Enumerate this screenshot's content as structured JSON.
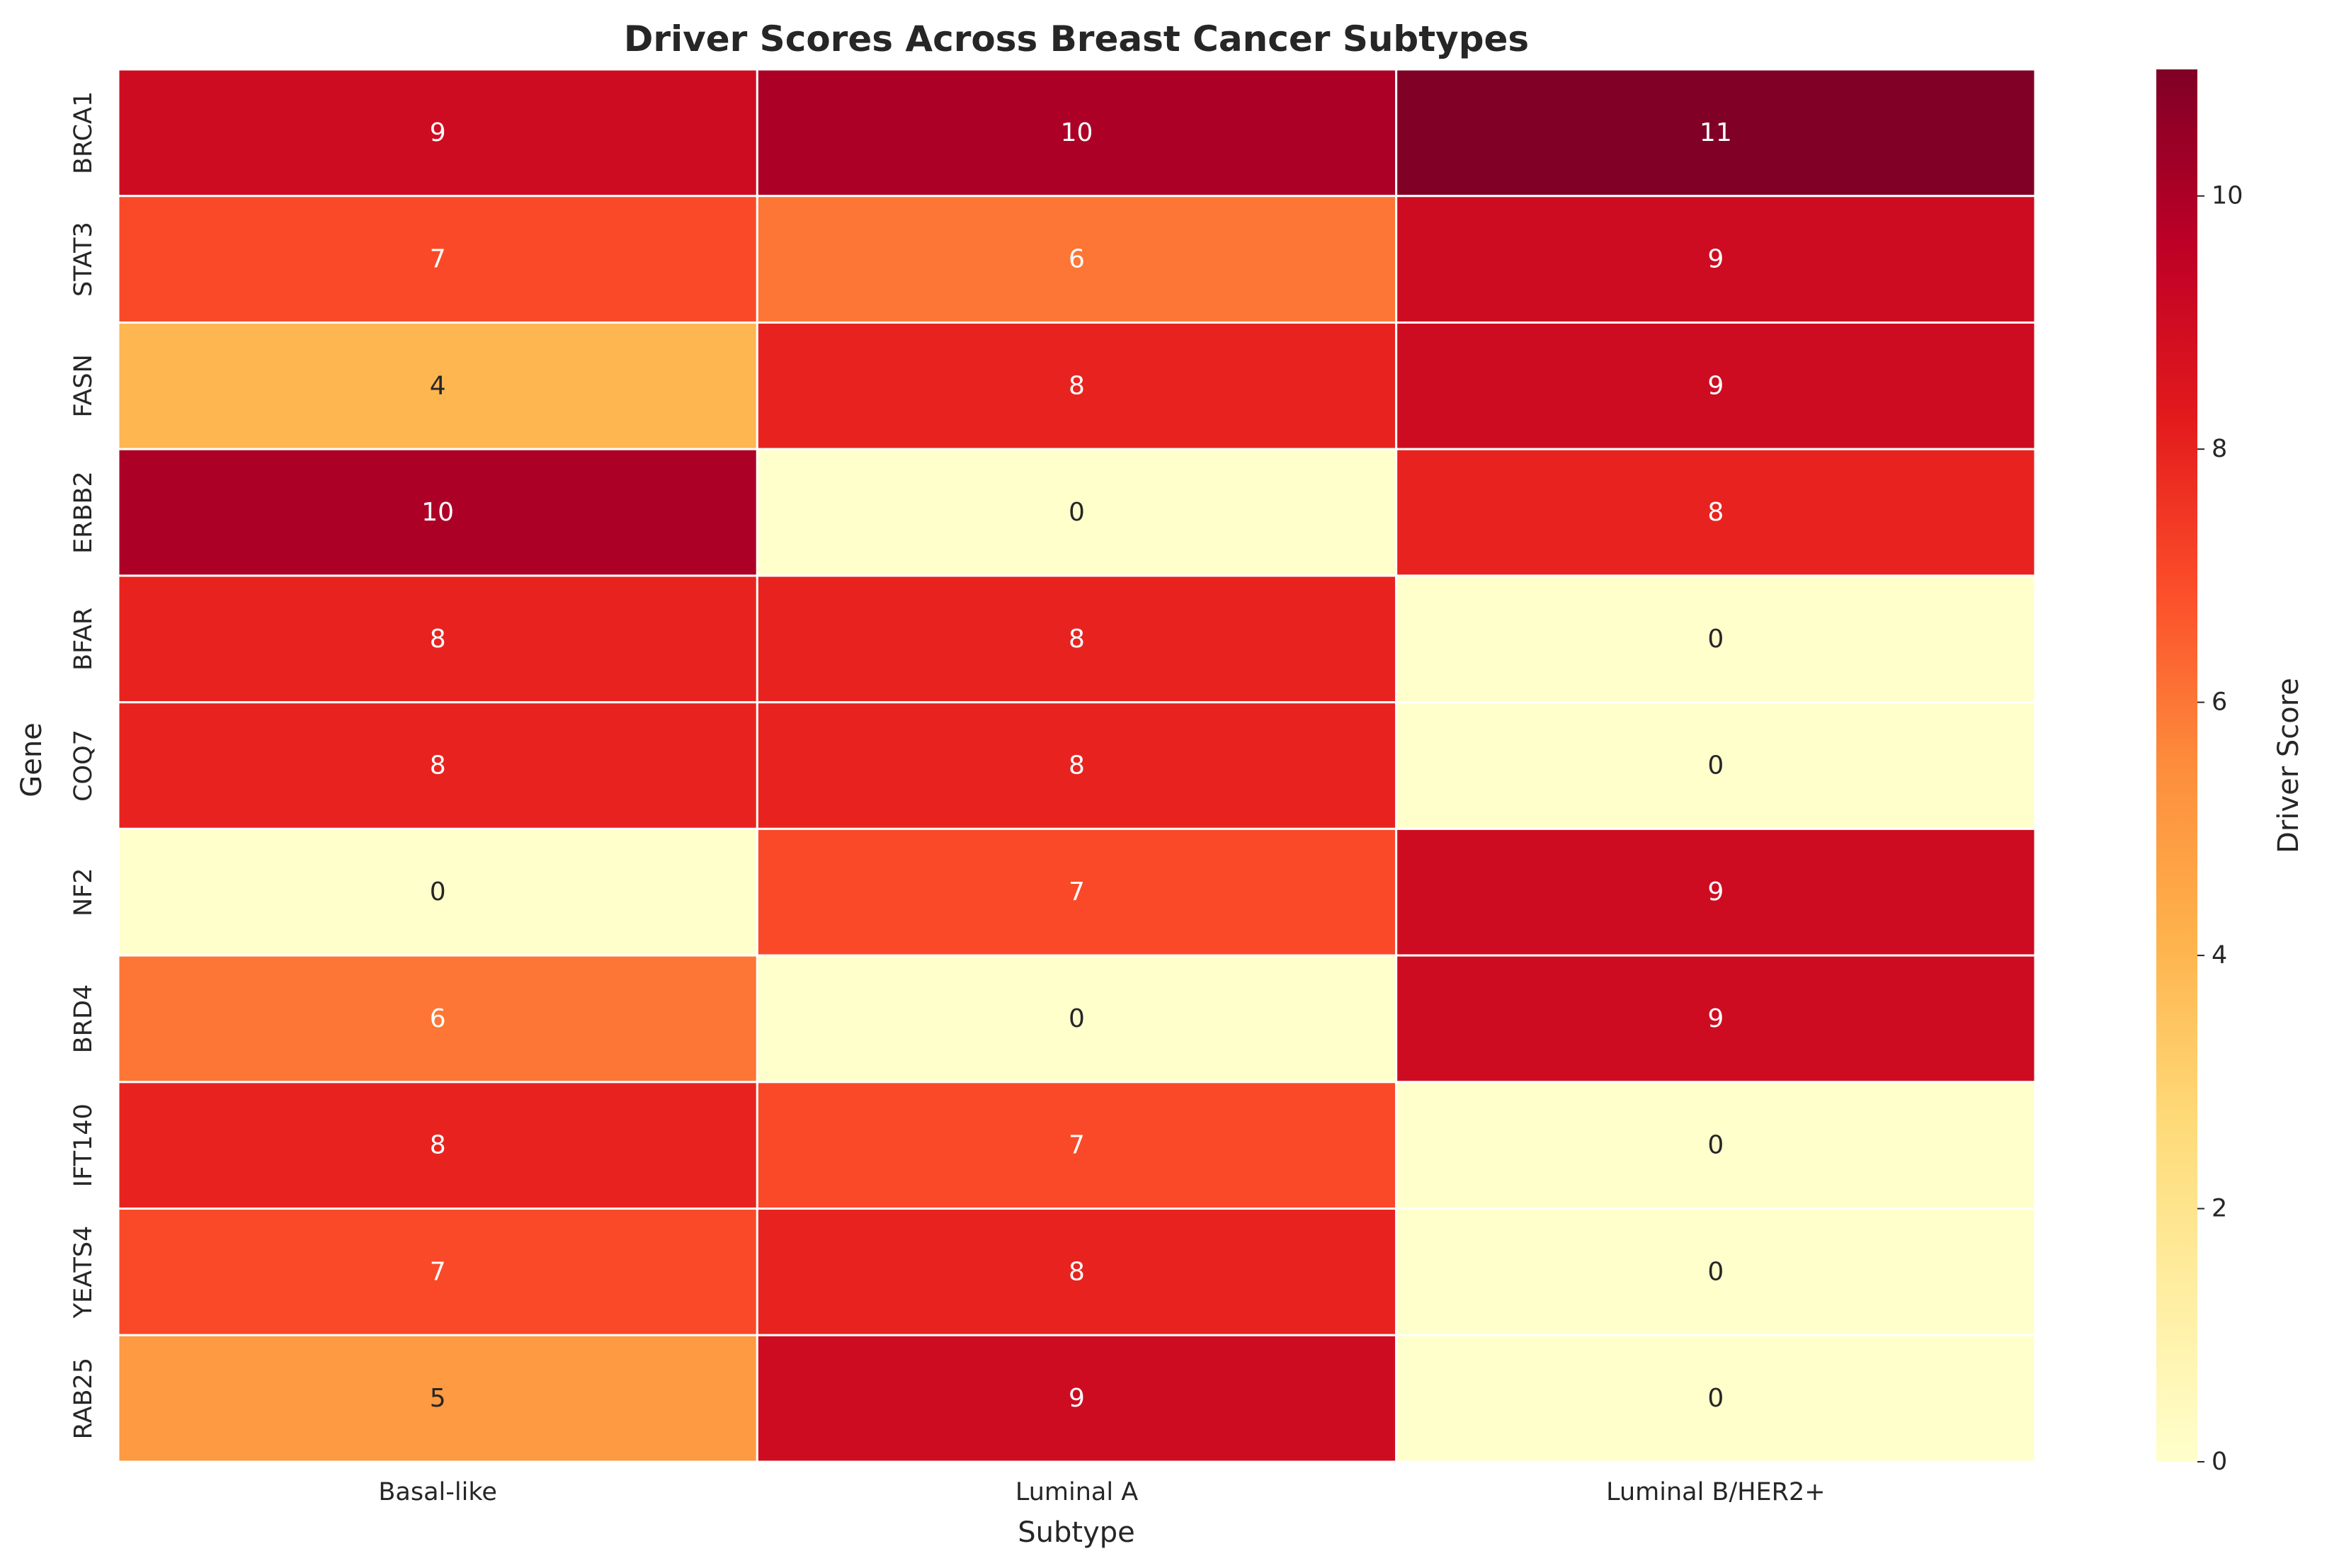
{
  "chart_data": {
    "type": "heatmap",
    "title": "Driver Scores Across Breast Cancer Subtypes",
    "xlabel": "Subtype",
    "ylabel": "Gene",
    "x_categories": [
      "Basal-like",
      "Luminal A",
      "Luminal B/HER2+"
    ],
    "y_categories": [
      "BRCA1",
      "STAT3",
      "FASN",
      "ERBB2",
      "BFAR",
      "COQ7",
      "NF2",
      "BRD4",
      "IFT140",
      "YEATS4",
      "RAB25"
    ],
    "values": [
      [
        9,
        10,
        11
      ],
      [
        7,
        6,
        9
      ],
      [
        4,
        8,
        9
      ],
      [
        10,
        0,
        8
      ],
      [
        8,
        8,
        0
      ],
      [
        8,
        8,
        0
      ],
      [
        0,
        7,
        9
      ],
      [
        6,
        0,
        9
      ],
      [
        8,
        7,
        0
      ],
      [
        7,
        8,
        0
      ],
      [
        5,
        9,
        0
      ]
    ],
    "colorbar": {
      "label": "Driver Score",
      "range": [
        0,
        11
      ],
      "ticks": [
        0,
        2,
        4,
        6,
        8,
        10
      ],
      "colormap": "YlOrRd"
    },
    "annotations": true
  }
}
